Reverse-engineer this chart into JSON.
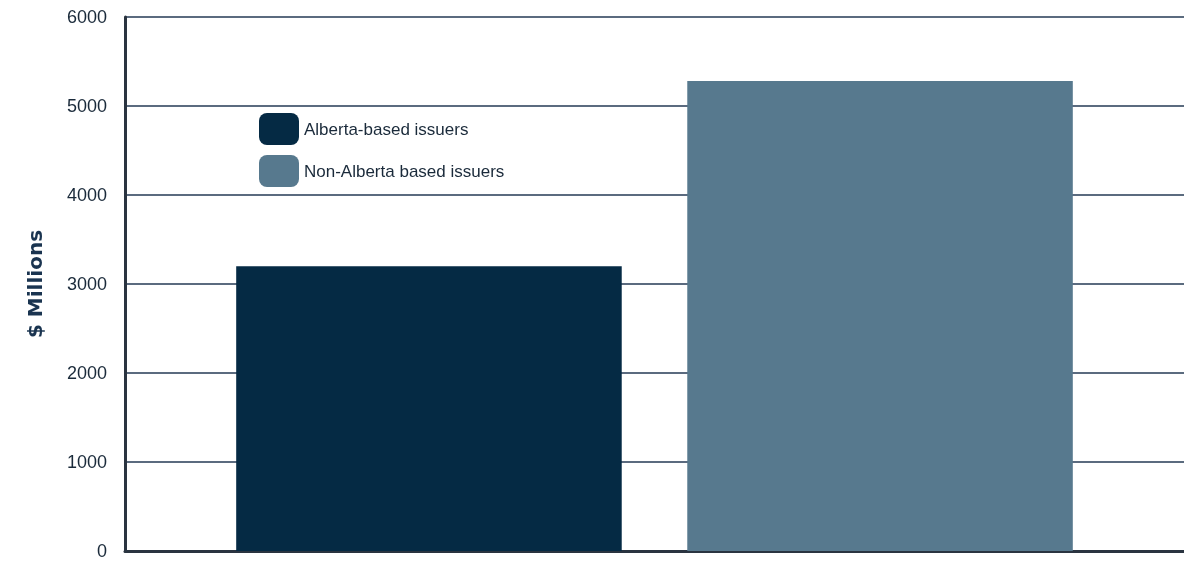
{
  "chart_data": {
    "type": "bar",
    "ylabel": "$ Millions",
    "categories": [
      null
    ],
    "series": [
      {
        "name": "Alberta-based issuers",
        "color": "#052a44",
        "values": [
          3200
        ]
      },
      {
        "name": "Non-Alberta based issuers",
        "color": "#57798e",
        "values": [
          5280
        ]
      }
    ],
    "ylim": [
      0,
      6000
    ],
    "yticks": [
      0,
      1000,
      2000,
      3000,
      4000,
      5000,
      6000
    ],
    "grid": "y",
    "legend": "top left"
  }
}
